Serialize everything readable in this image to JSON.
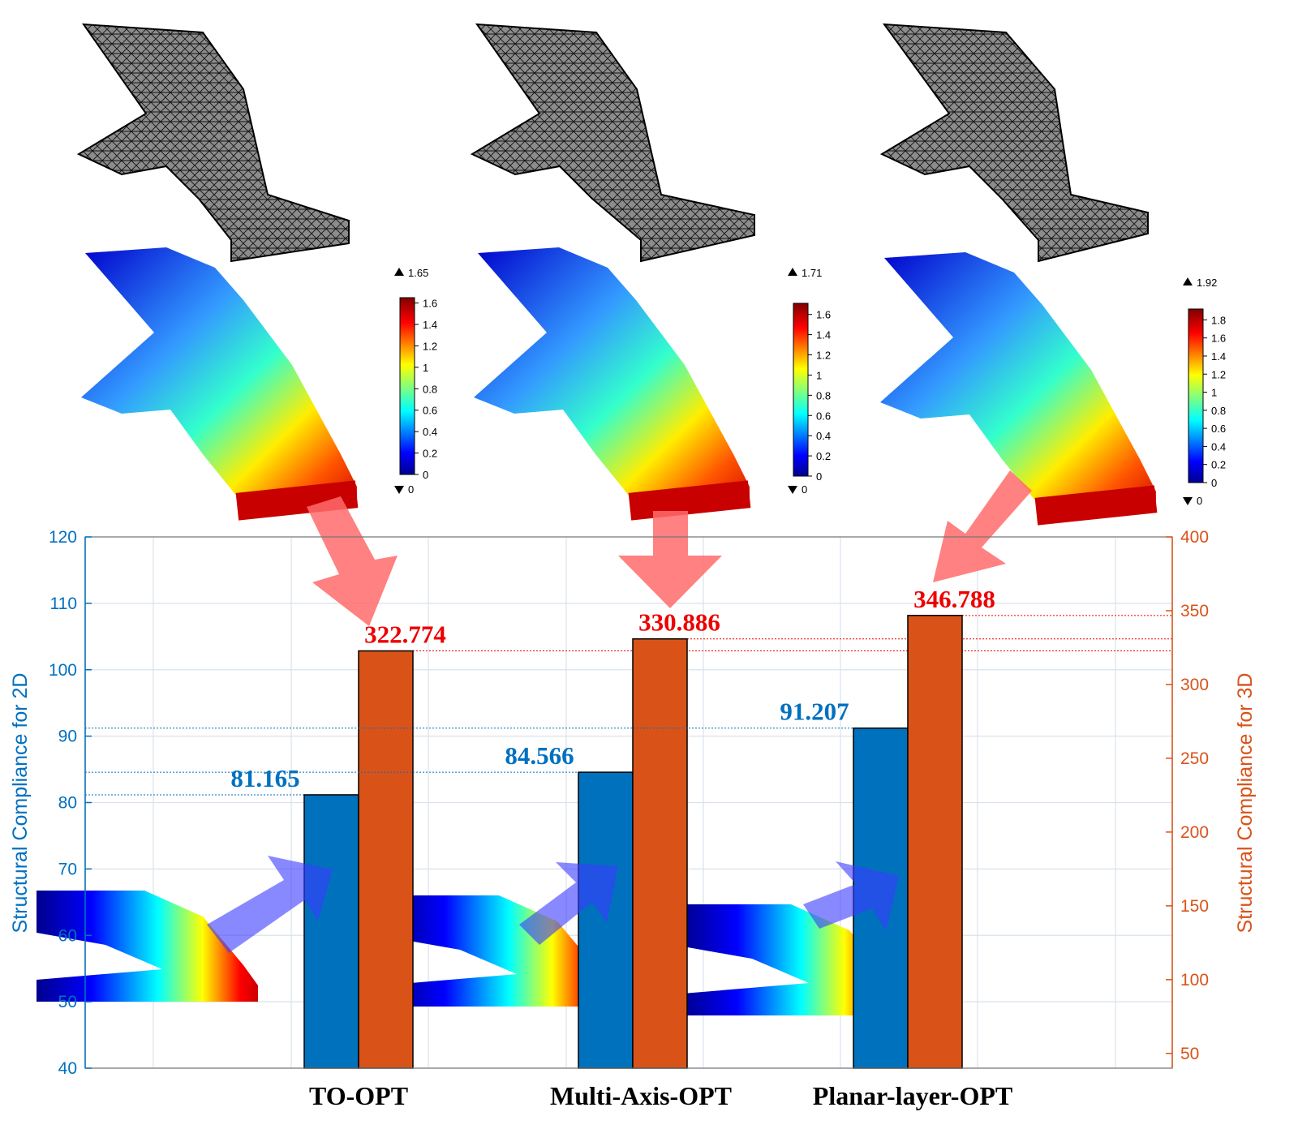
{
  "colors": {
    "blue": "#0072bd",
    "orange": "#d95319",
    "axis_left": "#0070c0",
    "axis_right": "#d95319",
    "label_red": "#ee0000",
    "arrow_red": "#ff6b6b",
    "arrow_blue": "#5b5bff"
  },
  "chart_data": {
    "type": "bar",
    "categories": [
      "TO-OPT",
      "Multi-Axis-OPT",
      "Planar-layer-OPT"
    ],
    "series": [
      {
        "name": "",
        "axis": "left",
        "values": [
          81.165,
          84.566,
          91.207
        ],
        "labels": [
          "81.165",
          "84.566",
          "91.207"
        ]
      },
      {
        "name": "",
        "axis": "right",
        "values": [
          322.774,
          330.886,
          346.788
        ],
        "labels": [
          "322.774",
          "330.886",
          "346.788"
        ]
      }
    ],
    "ylabel_left": "Structural Compliance for 2D",
    "ylabel_right": "Structural Compliance for 3D",
    "ylim_left": [
      40,
      120
    ],
    "ylim_right": [
      40,
      400
    ],
    "yticks_left": [
      "40",
      "50",
      "60",
      "70",
      "80",
      "90",
      "100",
      "110",
      "120"
    ],
    "yticks_right": [
      "50",
      "100",
      "150",
      "200",
      "250",
      "300",
      "350",
      "400"
    ],
    "grid": true,
    "colorbars": [
      {
        "max_label": "1.65",
        "min_label": "0",
        "ticks": [
          "0",
          "0.2",
          "0.4",
          "0.6",
          "0.8",
          "1",
          "1.2",
          "1.4",
          "1.6"
        ]
      },
      {
        "max_label": "1.71",
        "min_label": "0",
        "ticks": [
          "0",
          "0.2",
          "0.4",
          "0.6",
          "0.8",
          "1",
          "1.2",
          "1.4",
          "1.6"
        ]
      },
      {
        "max_label": "1.92",
        "min_label": "0",
        "ticks": [
          "0",
          "0.2",
          "0.4",
          "0.6",
          "0.8",
          "1",
          "1.2",
          "1.4",
          "1.6",
          "1.8"
        ]
      }
    ]
  }
}
